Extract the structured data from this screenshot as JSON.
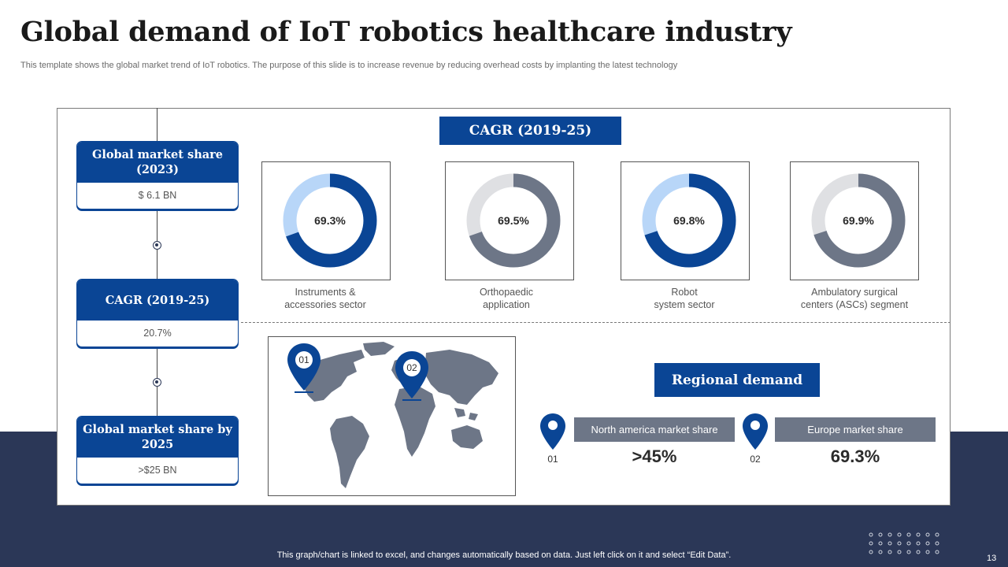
{
  "header": {
    "title": "Global demand of IoT robotics healthcare industry",
    "subtitle": "This template shows the global market trend of IoT robotics. The purpose of this slide is to increase revenue by reducing overhead costs by implanting the latest technology"
  },
  "metrics": [
    {
      "label": "Global market share (2023)",
      "value": "$ 6.1 BN"
    },
    {
      "label": "CAGR (2019-25)",
      "value": "20.7%"
    },
    {
      "label": "Global market share by  2025",
      "value": ">$25 BN"
    }
  ],
  "cagr_heading": "CAGR (2019-25)",
  "chart_data": {
    "type": "pie",
    "title": "CAGR (2019-25)",
    "categories": [
      "Instruments & accessories sector",
      "Orthopaedic application",
      "Robot system sector",
      "Ambulatory surgical centers (ASCs) segment"
    ],
    "values": [
      69.3,
      69.5,
      69.8,
      69.9
    ],
    "labels": [
      "69.3%",
      "69.5%",
      "69.8%",
      "69.9%"
    ],
    "captions": [
      "Instruments &\naccessories sector",
      "Orthopaedic\napplication",
      "Robot\nsystem sector",
      "Ambulatory surgical\ncenters (ASCs) segment"
    ],
    "colors": {
      "blue": "#0a4595",
      "light_blue": "#b8d6f8",
      "slate": "#6d7687",
      "light_gray": "#dfe0e3"
    }
  },
  "map": {
    "pins": [
      "01",
      "02"
    ]
  },
  "regional": {
    "heading": "Regional demand",
    "items": [
      {
        "num": "01",
        "label": "North america market share",
        "value": ">45%"
      },
      {
        "num": "02",
        "label": "Europe market share",
        "value": "69.3%"
      }
    ]
  },
  "footer": {
    "note": "This graph/chart is linked to excel,  and changes automatically based on data. Just left click on it and select “Edit Data”.",
    "page": "13"
  },
  "icons": {
    "pin": "map-pin-icon",
    "dots": "dot-grid-decoration"
  }
}
